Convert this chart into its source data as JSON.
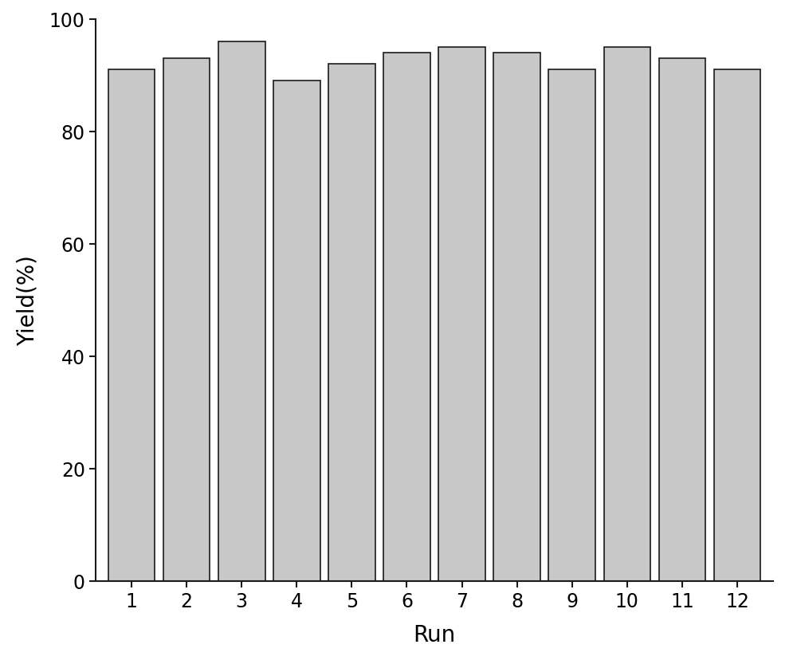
{
  "categories": [
    1,
    2,
    3,
    4,
    5,
    6,
    7,
    8,
    9,
    10,
    11,
    12
  ],
  "values": [
    91,
    93,
    96,
    89,
    92,
    94,
    95,
    94,
    91,
    95,
    93,
    91
  ],
  "bar_color": "#c8c8c8",
  "bar_edgecolor": "#1a1a1a",
  "xlabel": "Run",
  "ylabel": "Yield(%)",
  "ylim": [
    0,
    100
  ],
  "yticks": [
    0,
    20,
    40,
    60,
    80,
    100
  ],
  "xlabel_fontsize": 20,
  "ylabel_fontsize": 20,
  "tick_fontsize": 17,
  "bar_width": 0.85,
  "background_color": "#ffffff",
  "figsize": [
    10.0,
    8.29
  ],
  "dpi": 100
}
